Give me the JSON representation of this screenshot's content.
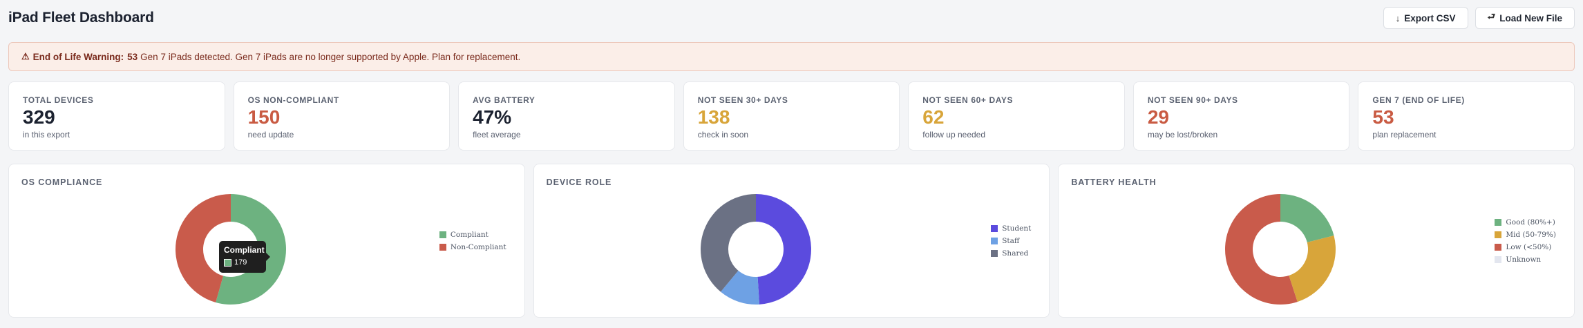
{
  "header": {
    "title": "iPad Fleet Dashboard",
    "export_label": "Export CSV",
    "export_icon": "↓",
    "load_label": "Load New File",
    "load_icon": "⮐"
  },
  "alert": {
    "icon": "⚠",
    "label": "End of Life Warning:",
    "count": "53",
    "message": "Gen 7 iPads detected. Gen 7 iPads are no longer supported by Apple. Plan for replacement."
  },
  "stats": [
    {
      "label": "TOTAL DEVICES",
      "value": "329",
      "sub": "in this export",
      "color": "#1c2230"
    },
    {
      "label": "OS NON-COMPLIANT",
      "value": "150",
      "sub": "need update",
      "color": "#c95b43"
    },
    {
      "label": "AVG BATTERY",
      "value": "47%",
      "sub": "fleet average",
      "color": "#1c2230"
    },
    {
      "label": "NOT SEEN 30+ DAYS",
      "value": "138",
      "sub": "check in soon",
      "color": "#d8a53a"
    },
    {
      "label": "NOT SEEN 60+ DAYS",
      "value": "62",
      "sub": "follow up needed",
      "color": "#d8a53a"
    },
    {
      "label": "NOT SEEN 90+ DAYS",
      "value": "29",
      "sub": "may be lost/broken",
      "color": "#c95b43"
    },
    {
      "label": "GEN 7 (END OF LIFE)",
      "value": "53",
      "sub": "plan replacement",
      "color": "#c95b43"
    }
  ],
  "chart_data": [
    {
      "type": "pie",
      "title": "OS COMPLIANCE",
      "categories": [
        "Compliant",
        "Non-Compliant"
      ],
      "values": [
        179,
        150
      ],
      "colors": [
        "#6db280",
        "#c95b4b"
      ],
      "tooltip": {
        "label": "Compliant",
        "value": "179"
      }
    },
    {
      "type": "pie",
      "title": "DEVICE ROLE",
      "categories": [
        "Student",
        "Staff",
        "Shared"
      ],
      "values": [
        0.49,
        0.12,
        0.39
      ],
      "colors": [
        "#5b4bde",
        "#6ea1e4",
        "#6b7184"
      ]
    },
    {
      "type": "pie",
      "title": "BATTERY HEALTH",
      "categories": [
        "Good (80%+)",
        "Mid (50-79%)",
        "Low (<50%)",
        "Unknown"
      ],
      "values": [
        0.21,
        0.24,
        0.55,
        0
      ],
      "colors": [
        "#6db280",
        "#d8a53a",
        "#c95b4b",
        "#e3e6ef"
      ]
    }
  ]
}
